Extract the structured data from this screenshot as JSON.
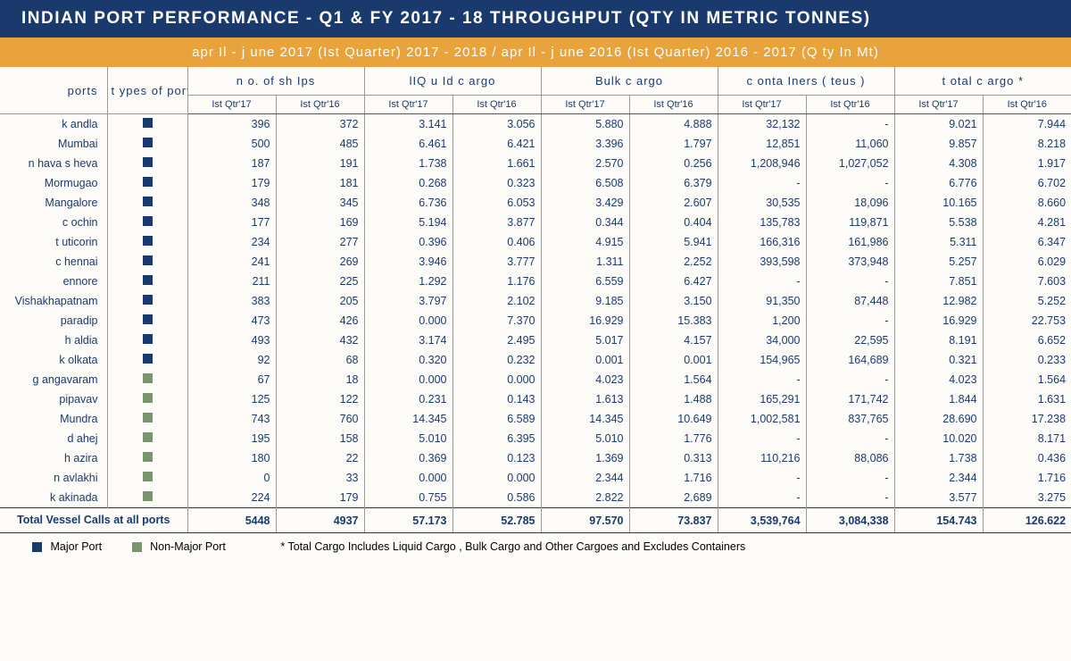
{
  "title": "INDIAN PORT PERFORMANCE - Q1 & FY 2017 - 18 THROUGHPUT (QTY IN METRIC TONNES)",
  "subtitle": "apr Il -  j une  2017 (Ist Quarter) 2017 - 2018 /    apr Il -  j une  2016 (Ist Quarter)  2016 - 2017 (Q    ty  In Mt)",
  "colors": {
    "header_bg": "#1a3a6e",
    "subheader_bg": "#e8a33d",
    "text": "#1a3a6e",
    "major_port": "#1a3a6e",
    "nonmajor_port": "#7a9470",
    "border": "#999999"
  },
  "group_headers": {
    "ports": "ports",
    "types": "t ypes of ports",
    "ships": "n o. of  sh Ips",
    "liquid": "lIQ u Id  c argo",
    "bulk": "Bulk   c argo",
    "containers": "c onta  Iners (  teus  )",
    "total": "t otal    c argo *"
  },
  "sub_headers": {
    "q17": "Ist Qtr'17",
    "q16": "Ist Qtr'16"
  },
  "rows": [
    {
      "port": "k andla",
      "type": "major",
      "ships17": "396",
      "ships16": "372",
      "liq17": "3.141",
      "liq16": "3.056",
      "bulk17": "5.880",
      "bulk16": "4.888",
      "cont17": "32,132",
      "cont16": "-",
      "tot17": "9.021",
      "tot16": "7.944"
    },
    {
      "port": "Mumbai",
      "type": "major",
      "ships17": "500",
      "ships16": "485",
      "liq17": "6.461",
      "liq16": "6.421",
      "bulk17": "3.396",
      "bulk16": "1.797",
      "cont17": "12,851",
      "cont16": "11,060",
      "tot17": "9.857",
      "tot16": "8.218"
    },
    {
      "port": "n hava s heva",
      "type": "major",
      "ships17": "187",
      "ships16": "191",
      "liq17": "1.738",
      "liq16": "1.661",
      "bulk17": "2.570",
      "bulk16": "0.256",
      "cont17": "1,208,946",
      "cont16": "1,027,052",
      "tot17": "4.308",
      "tot16": "1.917"
    },
    {
      "port": "Mormugao",
      "type": "major",
      "ships17": "179",
      "ships16": "181",
      "liq17": "0.268",
      "liq16": "0.323",
      "bulk17": "6.508",
      "bulk16": "6.379",
      "cont17": "-",
      "cont16": "-",
      "tot17": "6.776",
      "tot16": "6.702"
    },
    {
      "port": "Mangalore",
      "type": "major",
      "ships17": "348",
      "ships16": "345",
      "liq17": "6.736",
      "liq16": "6.053",
      "bulk17": "3.429",
      "bulk16": "2.607",
      "cont17": "30,535",
      "cont16": "18,096",
      "tot17": "10.165",
      "tot16": "8.660"
    },
    {
      "port": "c ochin",
      "type": "major",
      "ships17": "177",
      "ships16": "169",
      "liq17": "5.194",
      "liq16": "3.877",
      "bulk17": "0.344",
      "bulk16": "0.404",
      "cont17": "135,783",
      "cont16": "119,871",
      "tot17": "5.538",
      "tot16": "4.281"
    },
    {
      "port": "t uticorin",
      "type": "major",
      "ships17": "234",
      "ships16": "277",
      "liq17": "0.396",
      "liq16": "0.406",
      "bulk17": "4.915",
      "bulk16": "5.941",
      "cont17": "166,316",
      "cont16": "161,986",
      "tot17": "5.311",
      "tot16": "6.347"
    },
    {
      "port": "c hennai",
      "type": "major",
      "ships17": "241",
      "ships16": "269",
      "liq17": "3.946",
      "liq16": "3.777",
      "bulk17": "1.311",
      "bulk16": "2.252",
      "cont17": "393,598",
      "cont16": "373,948",
      "tot17": "5.257",
      "tot16": "6.029"
    },
    {
      "port": "ennore",
      "type": "major",
      "ships17": "211",
      "ships16": "225",
      "liq17": "1.292",
      "liq16": "1.176",
      "bulk17": "6.559",
      "bulk16": "6.427",
      "cont17": "-",
      "cont16": "-",
      "tot17": "7.851",
      "tot16": "7.603"
    },
    {
      "port": "Vishakhapatnam",
      "type": "major",
      "ships17": "383",
      "ships16": "205",
      "liq17": "3.797",
      "liq16": "2.102",
      "bulk17": "9.185",
      "bulk16": "3.150",
      "cont17": "91,350",
      "cont16": "87,448",
      "tot17": "12.982",
      "tot16": "5.252"
    },
    {
      "port": "paradip",
      "type": "major",
      "ships17": "473",
      "ships16": "426",
      "liq17": "0.000",
      "liq16": "7.370",
      "bulk17": "16.929",
      "bulk16": "15.383",
      "cont17": "1,200",
      "cont16": "-",
      "tot17": "16.929",
      "tot16": "22.753"
    },
    {
      "port": "h aldia",
      "type": "major",
      "ships17": "493",
      "ships16": "432",
      "liq17": "3.174",
      "liq16": "2.495",
      "bulk17": "5.017",
      "bulk16": "4.157",
      "cont17": "34,000",
      "cont16": "22,595",
      "tot17": "8.191",
      "tot16": "6.652"
    },
    {
      "port": "k olkata",
      "type": "major",
      "ships17": "92",
      "ships16": "68",
      "liq17": "0.320",
      "liq16": "0.232",
      "bulk17": "0.001",
      "bulk16": "0.001",
      "cont17": "154,965",
      "cont16": "164,689",
      "tot17": "0.321",
      "tot16": "0.233"
    },
    {
      "port": "g angavaram",
      "type": "nonmajor",
      "ships17": "67",
      "ships16": "18",
      "liq17": "0.000",
      "liq16": "0.000",
      "bulk17": "4.023",
      "bulk16": "1.564",
      "cont17": "-",
      "cont16": "-",
      "tot17": "4.023",
      "tot16": "1.564"
    },
    {
      "port": "pipavav",
      "type": "nonmajor",
      "ships17": "125",
      "ships16": "122",
      "liq17": "0.231",
      "liq16": "0.143",
      "bulk17": "1.613",
      "bulk16": "1.488",
      "cont17": "165,291",
      "cont16": "171,742",
      "tot17": "1.844",
      "tot16": "1.631"
    },
    {
      "port": "Mundra",
      "type": "nonmajor",
      "ships17": "743",
      "ships16": "760",
      "liq17": "14.345",
      "liq16": "6.589",
      "bulk17": "14.345",
      "bulk16": "10.649",
      "cont17": "1,002,581",
      "cont16": "837,765",
      "tot17": "28.690",
      "tot16": "17.238"
    },
    {
      "port": "d ahej",
      "type": "nonmajor",
      "ships17": "195",
      "ships16": "158",
      "liq17": "5.010",
      "liq16": "6.395",
      "bulk17": "5.010",
      "bulk16": "1.776",
      "cont17": "-",
      "cont16": "-",
      "tot17": "10.020",
      "tot16": "8.171"
    },
    {
      "port": "h azira",
      "type": "nonmajor",
      "ships17": "180",
      "ships16": "22",
      "liq17": "0.369",
      "liq16": "0.123",
      "bulk17": "1.369",
      "bulk16": "0.313",
      "cont17": "110,216",
      "cont16": "88,086",
      "tot17": "1.738",
      "tot16": "0.436"
    },
    {
      "port": "n avlakhi",
      "type": "nonmajor",
      "ships17": "0",
      "ships16": "33",
      "liq17": "0.000",
      "liq16": "0.000",
      "bulk17": "2.344",
      "bulk16": "1.716",
      "cont17": "-",
      "cont16": "-",
      "tot17": "2.344",
      "tot16": "1.716"
    },
    {
      "port": "k akinada",
      "type": "nonmajor",
      "ships17": "224",
      "ships16": "179",
      "liq17": "0.755",
      "liq16": "0.586",
      "bulk17": "2.822",
      "bulk16": "2.689",
      "cont17": "-",
      "cont16": "-",
      "tot17": "3.577",
      "tot16": "3.275"
    }
  ],
  "totals": {
    "label": "Total Vessel Calls at all ports",
    "ships17": "5448",
    "ships16": "4937",
    "liq17": "57.173",
    "liq16": "52.785",
    "bulk17": "97.570",
    "bulk16": "73.837",
    "cont17": "3,539,764",
    "cont16": "3,084,338",
    "tot17": "154.743",
    "tot16": "126.622"
  },
  "legend": {
    "major": "Major Port",
    "nonmajor": "Non-Major Port",
    "note": "* Total Cargo Includes Liquid Cargo , Bulk Cargo and Other Cargoes and Excludes Containers"
  }
}
